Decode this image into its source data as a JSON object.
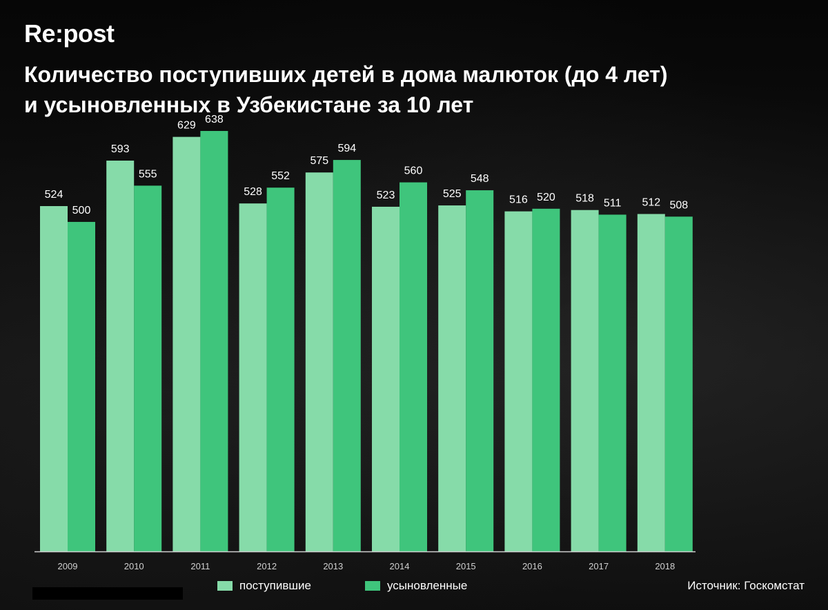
{
  "logo": "Re:post",
  "title_line1": "Количество поступивших детей в дома малюток (до 4 лет)",
  "title_line2": "и усыновленных в Узбекистане за 10 лет",
  "source": "Источник: Госкомстат",
  "colors": {
    "received": "#86dba9",
    "adopted": "#3fc57c",
    "axis": "#cfcfcf"
  },
  "chart_data": {
    "type": "bar",
    "title": "Количество поступивших детей в дома малюток (до 4 лет) и усыновленных в Узбекистане за 10 лет",
    "categories": [
      "2009",
      "2010",
      "2011",
      "2012",
      "2013",
      "2014",
      "2015",
      "2016",
      "2017",
      "2018"
    ],
    "series": [
      {
        "name": "поступившие",
        "values": [
          524,
          593,
          629,
          528,
          575,
          523,
          525,
          516,
          518,
          512
        ]
      },
      {
        "name": "усыновленные",
        "values": [
          500,
          555,
          638,
          552,
          594,
          560,
          548,
          520,
          511,
          508
        ]
      }
    ],
    "ylim": [
      0,
      650
    ],
    "grid": false,
    "legend": "bottom"
  }
}
